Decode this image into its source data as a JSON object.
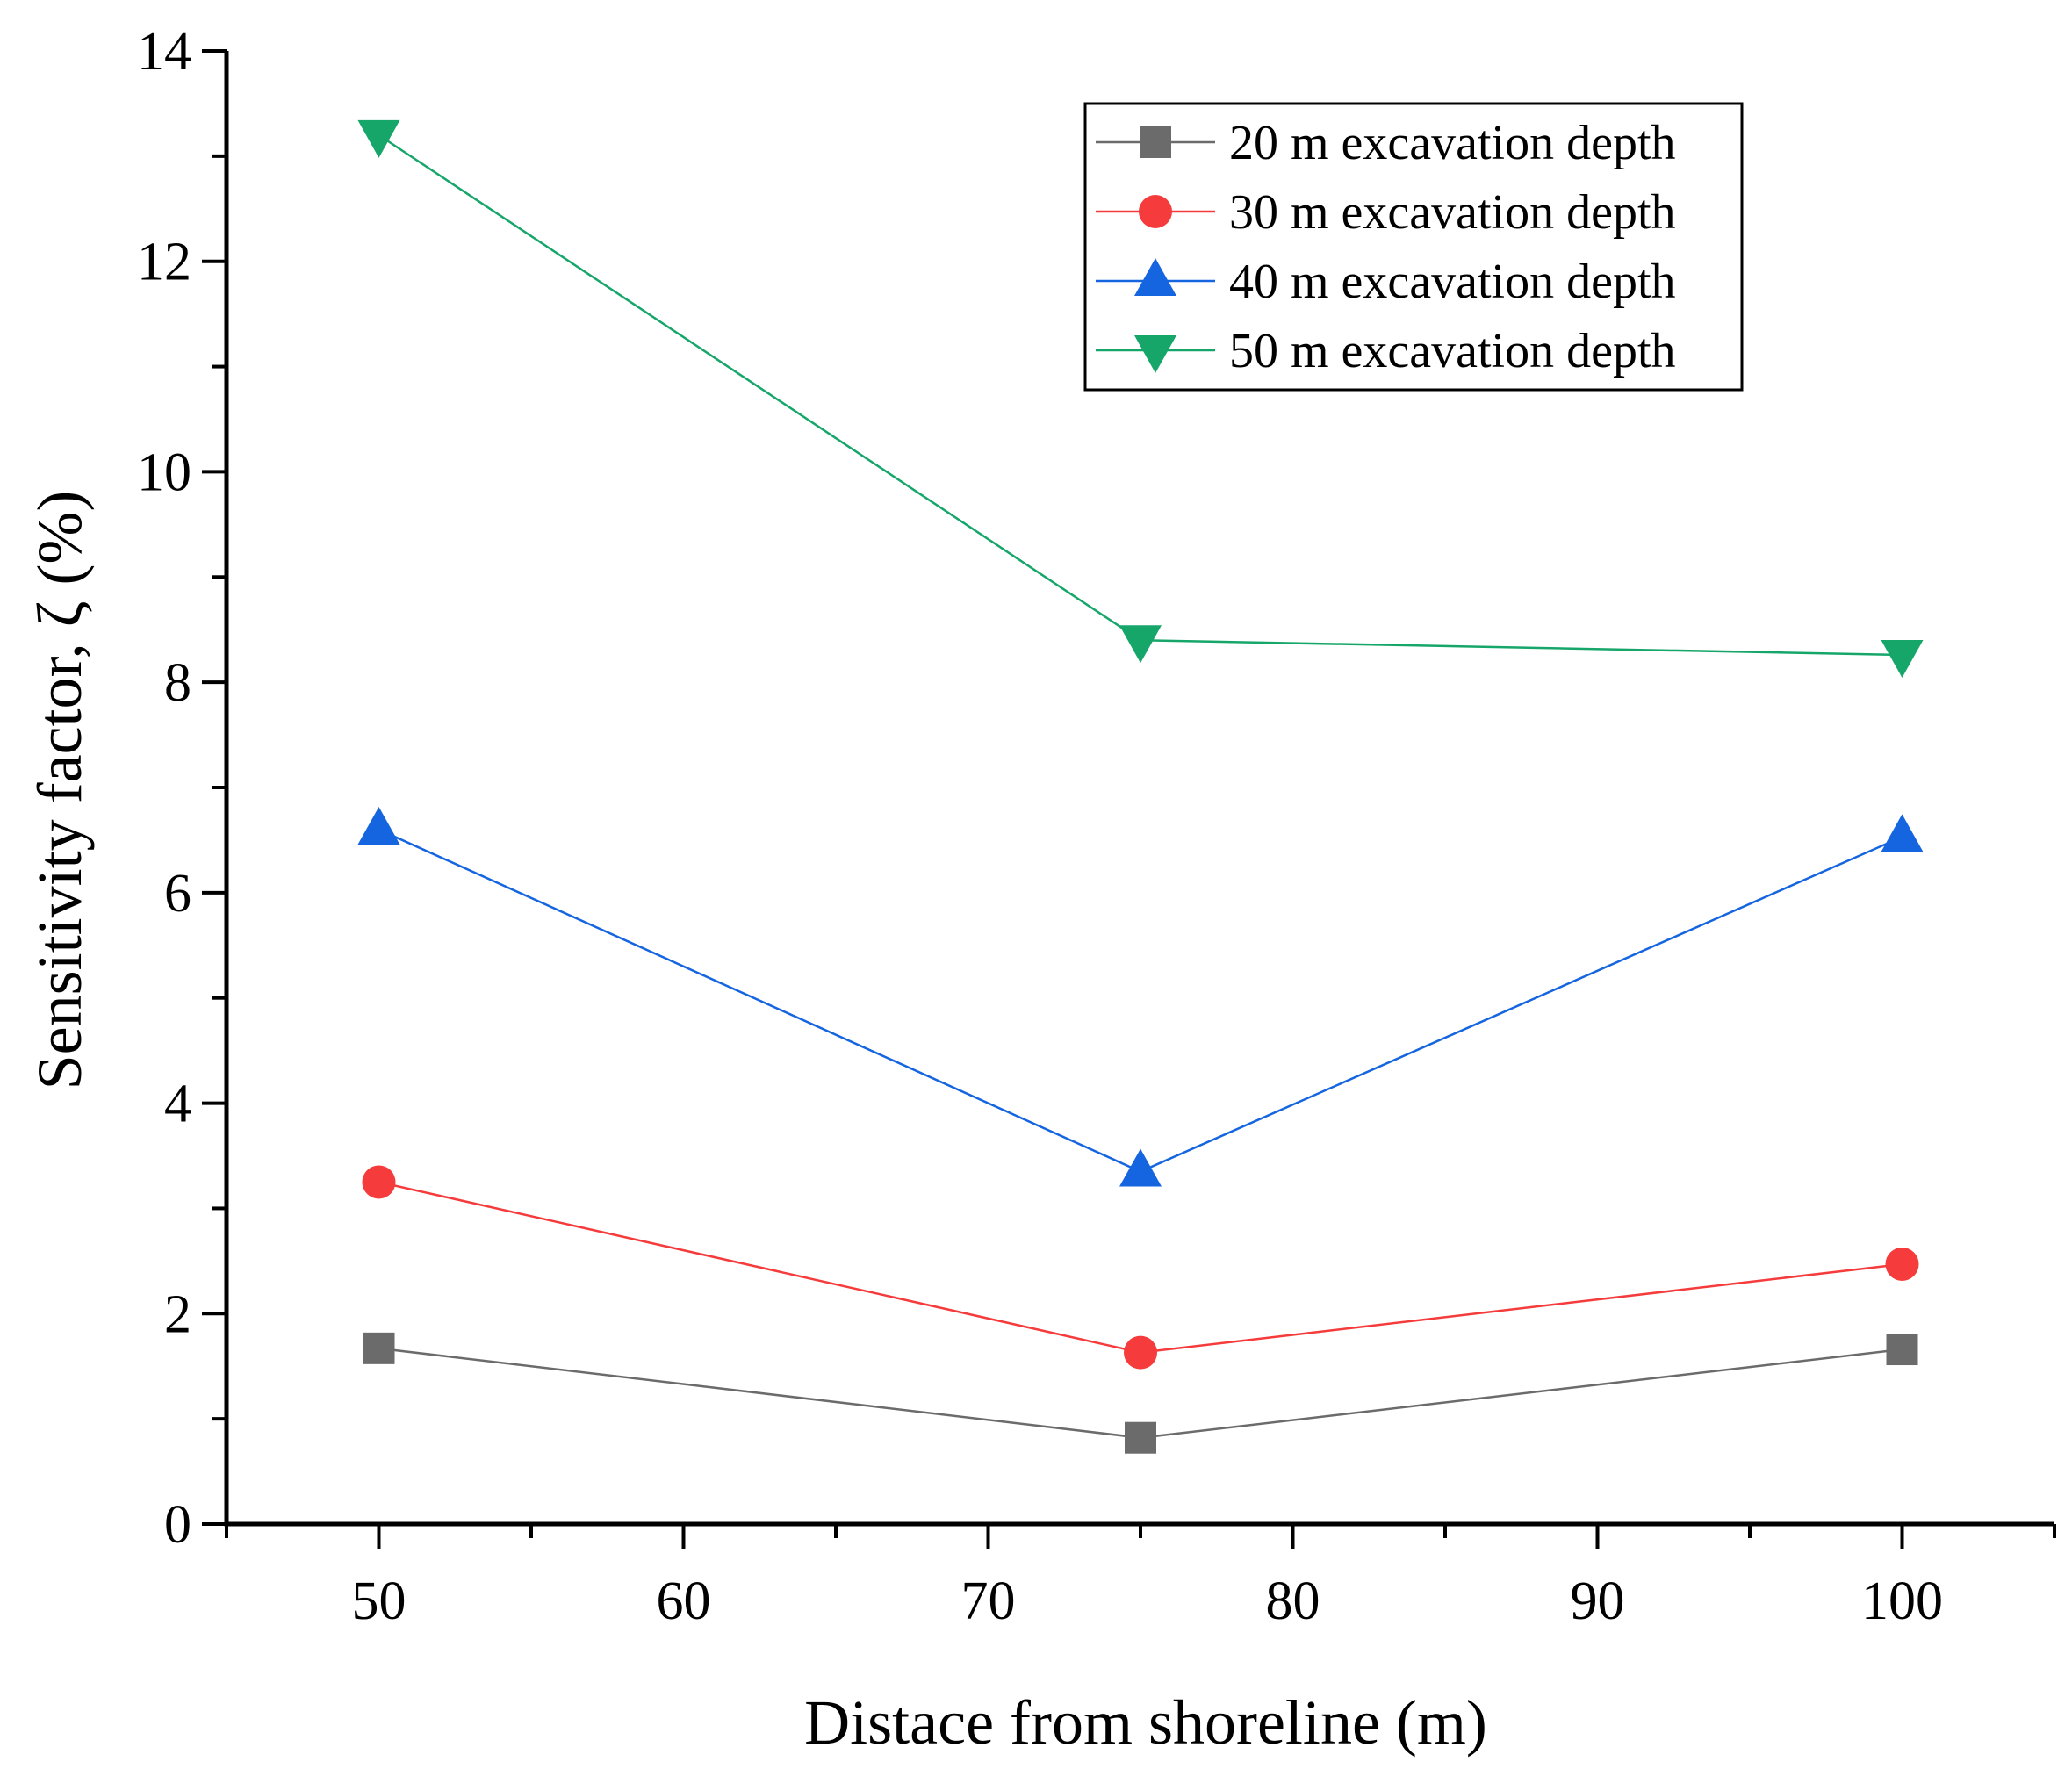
{
  "chart_data": {
    "type": "line",
    "title": "",
    "xlabel": "Distace from shoreline (m)",
    "ylabel": "Sensitivity factor, ζ (%)",
    "xlim": [
      45,
      105
    ],
    "ylim": [
      0,
      14
    ],
    "xticks": [
      50,
      60,
      70,
      80,
      90,
      100
    ],
    "yticks": [
      0,
      2,
      4,
      6,
      8,
      10,
      12,
      14
    ],
    "x": [
      50,
      75,
      100
    ],
    "legend_position": "top-right",
    "grid": false,
    "series": [
      {
        "name": "20 m excavation depth",
        "values": [
          1.67,
          0.82,
          1.66
        ],
        "color": "#6b6b6b",
        "marker": "square"
      },
      {
        "name": "30 m excavation depth",
        "values": [
          3.25,
          1.63,
          2.47
        ],
        "color": "#f53b3b",
        "marker": "circle"
      },
      {
        "name": "40 m excavation depth",
        "values": [
          6.6,
          3.35,
          6.53
        ],
        "color": "#1565e0",
        "marker": "triangle-up"
      },
      {
        "name": "50 m excavation depth",
        "values": [
          13.2,
          8.4,
          8.26
        ],
        "color": "#16a66a",
        "marker": "triangle-down"
      }
    ]
  }
}
